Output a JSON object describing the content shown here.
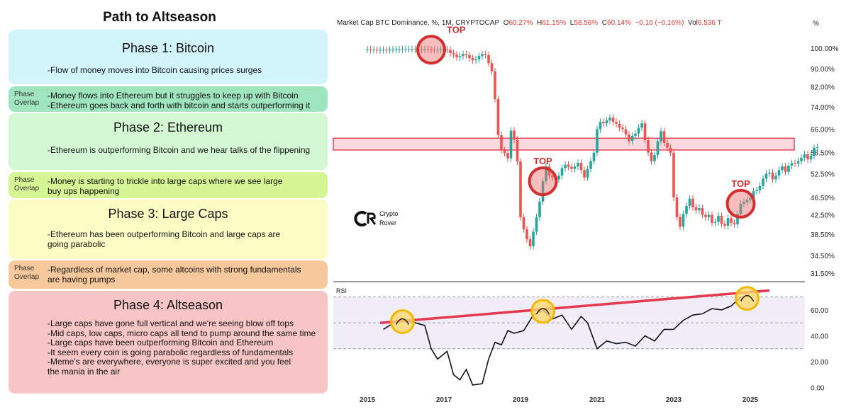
{
  "left_panel": {
    "title": "Path to Altseason",
    "phases": [
      {
        "title": "Phase 1: Bitcoin",
        "lines": [
          "-Flow of money moves into Bitcoin causing prices surges"
        ],
        "color": "#d2f4fb"
      },
      {
        "overlap_label": [
          "Phase",
          "Overlap"
        ],
        "lines": [
          "-Money flows into Ethereum but it struggles to keep up with Bitcoin",
          "-Ethereum goes back and forth with bitcoin and starts outperforming it"
        ],
        "color": "#9fe5c0"
      },
      {
        "title": "Phase 2: Ethereum",
        "lines": [
          "-Ethereum is outperforming Bitcoin and we hear talks of the flippening"
        ],
        "color": "#d4f7d4"
      },
      {
        "overlap_label": [
          "Phase",
          "Overlap"
        ],
        "lines": [
          "-Money is starting to trickle into large caps where we see large",
          "buy ups happening"
        ],
        "color": "#d6f594"
      },
      {
        "title": "Phase 3: Large Caps",
        "lines": [
          "-Ethereum has been outperforming Bitcoin and large caps are",
          "going parabolic"
        ],
        "color": "#fdfcc4"
      },
      {
        "overlap_label": [
          "Phase",
          "Overlap"
        ],
        "lines": [
          "-Regardless of market cap, some altcoins with strong fundamentals",
          "are having pumps"
        ],
        "color": "#f7c89c"
      },
      {
        "title": "Phase 4: Altseason",
        "lines": [
          "-Large caps have gone full vertical and we're seeing blow off tops",
          "-Mid caps, low caps, micro caps all tend to pump around the same time",
          "-Large caps have been outperforming Bitcoin and Ethereum",
          "-It seem every coin is going parabolic regardless of fundamentals",
          "-Meme's are everywhere, everyone is super excited and you feel",
          "the mania in the air"
        ],
        "color": "#f7c5c5"
      }
    ]
  },
  "header": {
    "symbol": "Market Cap BTC Dominance, %, 1M, CRYPTOCAP",
    "o_label": "O",
    "o_value": "60.27%",
    "h_label": "H",
    "h_value": "61.15%",
    "l_label": "L",
    "l_value": "58.56%",
    "c_label": "C",
    "c_value": "60.14%",
    "change": "−0.10 (−0.16%)",
    "vol_label": "Vol",
    "vol_value": "6.536 T",
    "unit_button": "%"
  },
  "watermark": {
    "brand": "Crypto",
    "brand2": "Rover"
  },
  "annotations": {
    "top_label": "TOP"
  },
  "chart_data": [
    {
      "type": "candlestick",
      "title": "Market Cap BTC Dominance",
      "y_scale": "log",
      "ylim": [
        30.5,
        106
      ],
      "y_ticks": [
        "100.00%",
        "90.00%",
        "82.00%",
        "74.00%",
        "66.00%",
        "58.50%",
        "52.50%",
        "46.50%",
        "42.50%",
        "38.50%",
        "34.50%",
        "31.50%"
      ],
      "x_ticks": [
        "2015",
        "2017",
        "2019",
        "2021",
        "2023",
        "2025"
      ],
      "x_start": "2015-01",
      "monthly_close": [
        99.4,
        99.1,
        99.2,
        99.0,
        99.1,
        99.2,
        99.1,
        99.2,
        99.2,
        99.3,
        99.3,
        99.4,
        99.5,
        99.5,
        99.5,
        99.4,
        99.4,
        99.3,
        99.4,
        99.3,
        99.2,
        99.1,
        99.2,
        99.3,
        99.4,
        99.2,
        97.5,
        96.8,
        95.4,
        96.0,
        97.0,
        96.5,
        95.0,
        94.0,
        94.5,
        96.0,
        97.0,
        96.5,
        92.6,
        88.8,
        77.0,
        64.0,
        59.2,
        58.4,
        56.8,
        65.5,
        62.5,
        55.9,
        42.0,
        39.5,
        37.5,
        36.2,
        39.0,
        42.0,
        45.5,
        50.5,
        54.5,
        52.0,
        51.5,
        51.0,
        52.0,
        54.0,
        55.0,
        54.4,
        53.8,
        54.5,
        55.5,
        53.5,
        51.5,
        53.8,
        56.0,
        58.5,
        66.0,
        68.5,
        68.0,
        69.0,
        70.0,
        68.5,
        67.8,
        66.5,
        66.0,
        64.2,
        62.1,
        63.8,
        64.5,
        66.5,
        68.0,
        62.4,
        58.5,
        56.0,
        57.8,
        62.0,
        65.3,
        61.5,
        60.0,
        58.5,
        46.5,
        42.0,
        40.0,
        42.7,
        44.5,
        46.2,
        44.2,
        43.5,
        44.0,
        42.5,
        42.0,
        42.5,
        40.8,
        41.0,
        42.3,
        40.6,
        40.2,
        41.8,
        40.8,
        40.5,
        42.7,
        45.0,
        45.4,
        45.9,
        46.3,
        48.0,
        48.2,
        49.3,
        51.2,
        52.5,
        52.8,
        51.0,
        52.0,
        53.5,
        54.5,
        53.0,
        54.7,
        55.4,
        55.3,
        56.0,
        57.0,
        58.0,
        56.5,
        57.5,
        60.0,
        60.2
      ],
      "resistance_band": [
        59.3,
        63.0
      ],
      "tops": [
        "2016-09",
        "2019-08",
        "2024-10"
      ]
    },
    {
      "type": "line",
      "title": "RSI",
      "ylim": [
        -4,
        78
      ],
      "y_ticks": [
        "60.00",
        "40.00",
        "20.00",
        "0.00"
      ],
      "bands": [
        30,
        70
      ],
      "monthly": [
        {
          "t": "2015-06",
          "v": 45
        },
        {
          "t": "2015-08",
          "v": 48
        },
        {
          "t": "2015-10",
          "v": 52
        },
        {
          "t": "2016-01",
          "v": 52
        },
        {
          "t": "2016-04",
          "v": 50
        },
        {
          "t": "2016-07",
          "v": 48
        },
        {
          "t": "2016-09",
          "v": 30
        },
        {
          "t": "2016-11",
          "v": 22
        },
        {
          "t": "2017-02",
          "v": 28
        },
        {
          "t": "2017-04",
          "v": 10
        },
        {
          "t": "2017-06",
          "v": 6
        },
        {
          "t": "2017-08",
          "v": 14
        },
        {
          "t": "2017-10",
          "v": 2
        },
        {
          "t": "2018-01",
          "v": 3
        },
        {
          "t": "2018-03",
          "v": 22
        },
        {
          "t": "2018-05",
          "v": 35
        },
        {
          "t": "2018-07",
          "v": 33
        },
        {
          "t": "2018-09",
          "v": 44
        },
        {
          "t": "2018-11",
          "v": 42
        },
        {
          "t": "2019-02",
          "v": 44
        },
        {
          "t": "2019-05",
          "v": 56
        },
        {
          "t": "2019-08",
          "v": 60
        },
        {
          "t": "2019-11",
          "v": 53
        },
        {
          "t": "2020-02",
          "v": 56
        },
        {
          "t": "2020-05",
          "v": 45
        },
        {
          "t": "2020-08",
          "v": 55
        },
        {
          "t": "2020-10",
          "v": 50
        },
        {
          "t": "2021-01",
          "v": 30
        },
        {
          "t": "2021-04",
          "v": 36
        },
        {
          "t": "2021-07",
          "v": 34
        },
        {
          "t": "2021-10",
          "v": 35
        },
        {
          "t": "2022-01",
          "v": 32
        },
        {
          "t": "2022-04",
          "v": 40
        },
        {
          "t": "2022-07",
          "v": 36
        },
        {
          "t": "2022-10",
          "v": 45
        },
        {
          "t": "2023-01",
          "v": 45
        },
        {
          "t": "2023-04",
          "v": 52
        },
        {
          "t": "2023-07",
          "v": 56
        },
        {
          "t": "2023-10",
          "v": 57
        },
        {
          "t": "2024-01",
          "v": 61
        },
        {
          "t": "2024-04",
          "v": 60
        },
        {
          "t": "2024-07",
          "v": 63
        },
        {
          "t": "2024-10",
          "v": 70
        }
      ],
      "trendline": [
        {
          "t": "2015-05",
          "v": 50
        },
        {
          "t": "2025-07",
          "v": 75
        }
      ],
      "highlight_circles": [
        "2015-12",
        "2019-08",
        "2024-12"
      ]
    }
  ]
}
